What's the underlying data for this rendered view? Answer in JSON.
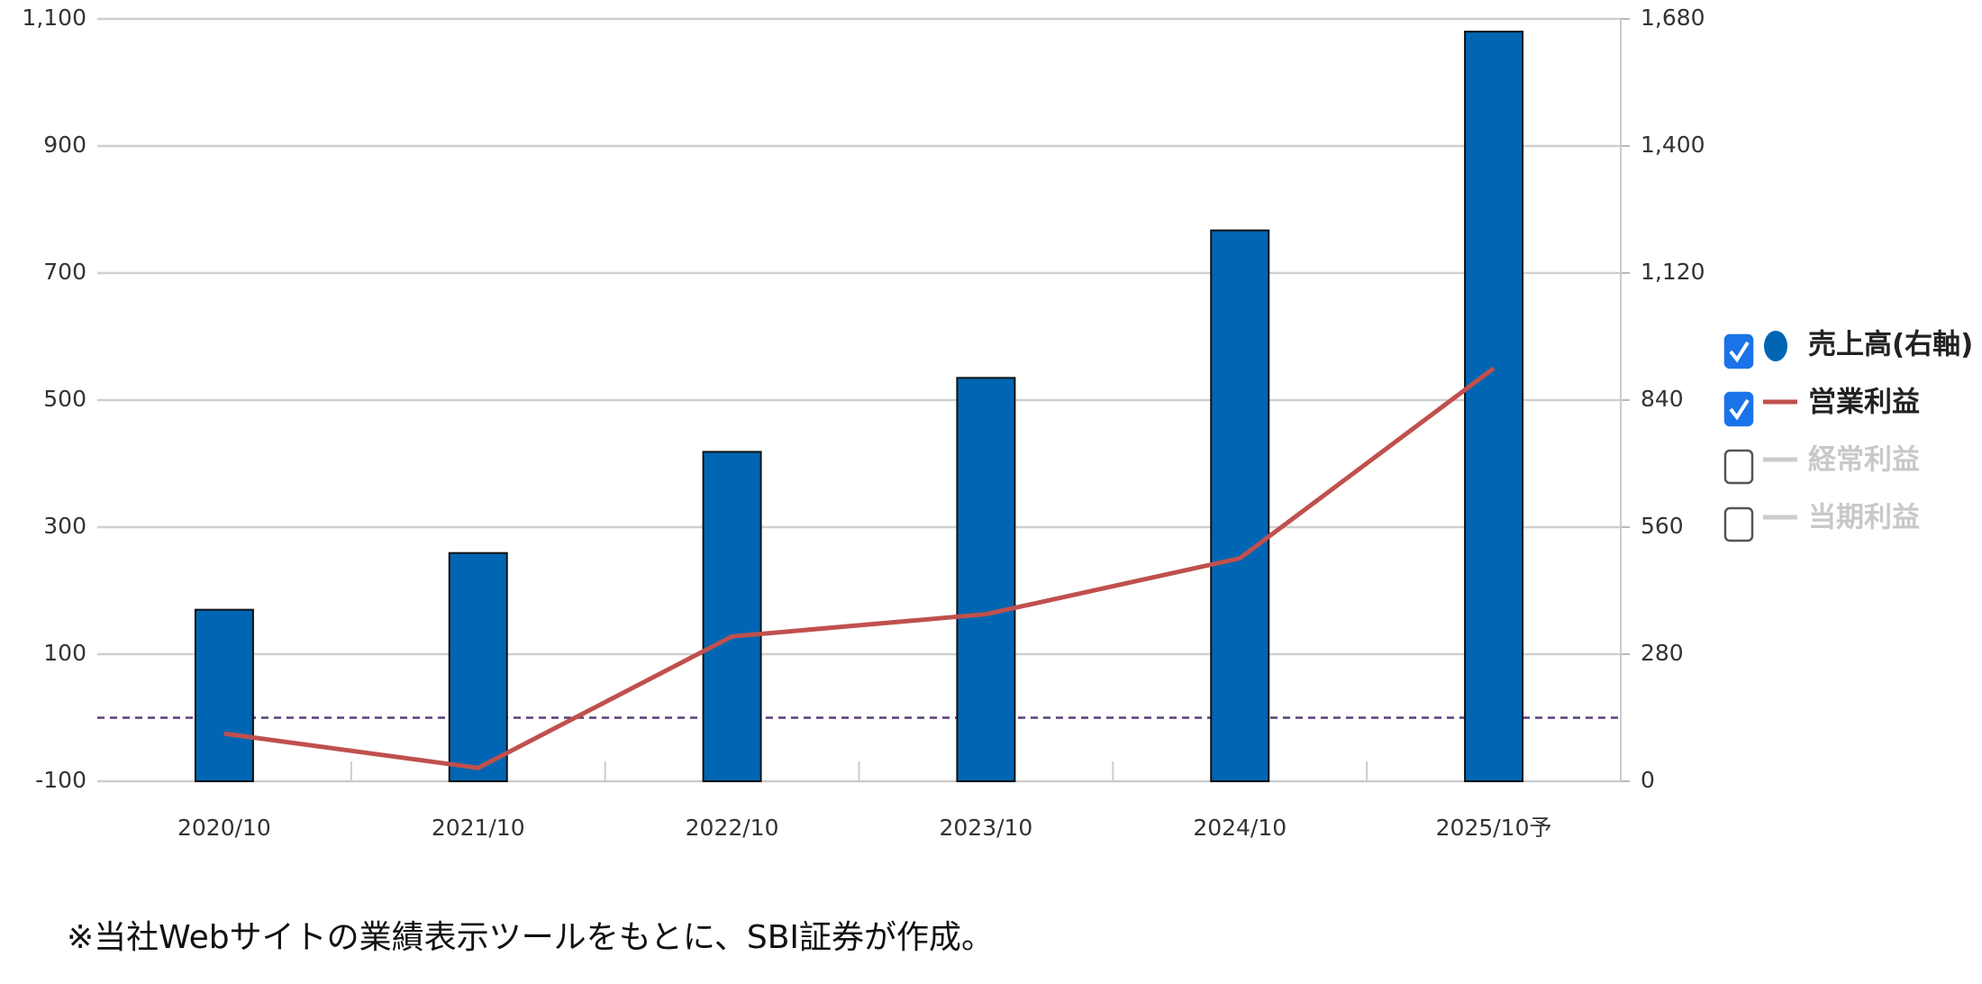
{
  "chart_data": {
    "type": "bar_line",
    "categories": [
      "2020/10",
      "2021/10",
      "2022/10",
      "2023/10",
      "2024/10",
      "2025/10予"
    ],
    "series": [
      {
        "name": "売上高(右軸)",
        "type": "bar",
        "axis": "y2",
        "color": "#0066b3",
        "checked": true,
        "values": [
          378,
          503,
          726,
          889,
          1214,
          1652
        ]
      },
      {
        "name": "営業利益",
        "type": "line",
        "axis": "y",
        "color": "#c0504d",
        "checked": true,
        "values": [
          -25,
          -79,
          128,
          163,
          251,
          550
        ]
      }
    ],
    "hidden_series": [
      {
        "name": "経常利益",
        "color": "#cccccc",
        "checked": false
      },
      {
        "name": "当期利益",
        "color": "#cccccc",
        "checked": false
      }
    ],
    "ylim": [
      -100,
      1100
    ],
    "yticks": [
      -100,
      100,
      300,
      500,
      700,
      900,
      {
        "value": 1100,
        "label": "1,100"
      }
    ],
    "y2lim": [
      0,
      1680
    ],
    "y2ticks": [
      0,
      280,
      560,
      840,
      {
        "value": 1120,
        "label": "1,120"
      },
      {
        "value": 1400,
        "label": "1,400"
      },
      {
        "value": 1680,
        "label": "1,680"
      }
    ],
    "reference_line": 0,
    "grid": true,
    "legend": "right",
    "footnote": "※当社Webサイトの業績表示ツールをもとに、SBI証券が作成。"
  }
}
